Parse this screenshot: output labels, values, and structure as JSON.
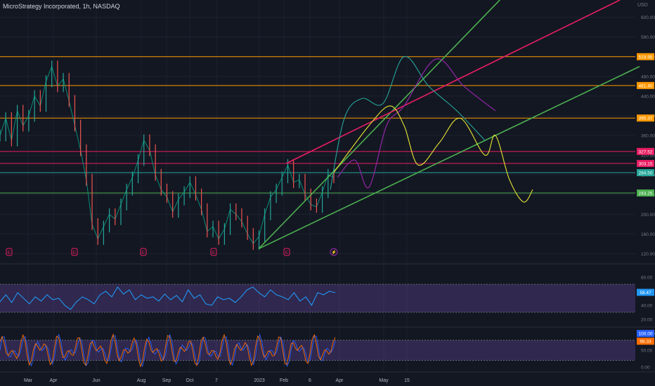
{
  "header": {
    "title": "MicroStrategy Incorporated, 1h, NASDAQ",
    "currency": "USD"
  },
  "chart_data": {
    "type": "line",
    "title": "MicroStrategy Incorporated, 1h, NASDAQ",
    "currency": "USD",
    "x_ticks": [
      "Mar",
      "Apr",
      "Jun",
      "Aug",
      "Sep",
      "Oct",
      "7",
      "2023",
      "Feb",
      "6",
      "Apr",
      "May",
      "15"
    ],
    "price_ticks": [
      600,
      560,
      520,
      480,
      440,
      400,
      360,
      320,
      280,
      240,
      200,
      160,
      120
    ],
    "price_range": [
      105,
      635
    ],
    "grid": true,
    "series": [
      {
        "values": [
          360,
          395,
          350,
          410,
          380,
          400,
          440,
          420,
          470,
          500,
          460,
          475,
          430,
          380,
          330,
          270,
          180,
          150,
          175,
          200,
          190,
          220,
          250,
          275,
          310,
          350,
          330,
          280,
          250,
          235,
          205,
          230,
          245,
          265,
          240,
          210,
          165,
          175,
          150,
          170,
          210,
          200,
          185,
          160,
          140,
          155,
          200,
          235,
          250,
          275,
          300,
          265,
          270,
          240,
          220,
          215,
          245,
          280,
          275
        ]
      }
    ],
    "earnings_markers": [
      "E",
      "E",
      "E",
      "E",
      "E"
    ],
    "dividend_marker": "⚡",
    "horizontal_levels": [
      {
        "value": 519.95,
        "label": "519.95",
        "color": "#ff9800"
      },
      {
        "value": 461.4,
        "label": "461.40",
        "color": "#ff9800"
      },
      {
        "value": 395.37,
        "label": "395.37",
        "color": "#ff9800"
      },
      {
        "value": 327.52,
        "label": "327.52",
        "color": "#e91e63"
      },
      {
        "value": 303.15,
        "label": "303.15",
        "color": "#e91e63"
      },
      {
        "value": 284.5,
        "label": "284.50",
        "color": "#26a69a"
      },
      {
        "value": 243.25,
        "label": "243.25",
        "color": "#4caf50"
      }
    ],
    "trendlines": [
      {
        "color": "#4caf50",
        "from": [
          368,
          130
        ],
        "to": [
          720,
          648
        ]
      },
      {
        "color": "#4caf50",
        "from": [
          368,
          130
        ],
        "to": [
          910,
          500
        ]
      },
      {
        "color": "#e91e63",
        "from": [
          407,
          303
        ],
        "to": [
          882,
          635
        ]
      }
    ],
    "projections": [
      {
        "color": "#26a69a",
        "points": [
          [
            470,
            250
          ],
          [
            490,
            395
          ],
          [
            515,
            435
          ],
          [
            545,
            425
          ],
          [
            575,
            520
          ],
          [
            610,
            460
          ],
          [
            650,
            410
          ],
          [
            690,
            350
          ]
        ]
      },
      {
        "color": "#9c27b0",
        "points": [
          [
            480,
            275
          ],
          [
            505,
            310
          ],
          [
            525,
            255
          ],
          [
            550,
            380
          ],
          [
            575,
            420
          ],
          [
            620,
            515
          ],
          [
            660,
            460
          ],
          [
            705,
            410
          ]
        ]
      },
      {
        "color": "#e6e633",
        "points": [
          [
            475,
            285
          ],
          [
            525,
            380
          ],
          [
            555,
            420
          ],
          [
            575,
            380
          ],
          [
            595,
            300
          ],
          [
            625,
            345
          ],
          [
            655,
            395
          ],
          [
            690,
            320
          ],
          [
            705,
            360
          ],
          [
            725,
            270
          ],
          [
            745,
            225
          ],
          [
            758,
            250
          ]
        ]
      }
    ],
    "indicators": [
      {
        "name": "rsi",
        "ticks": [
          80,
          60,
          40,
          20
        ],
        "range": [
          10,
          95
        ],
        "band": [
          30,
          70
        ],
        "last_value": "58.47",
        "values": [
          45,
          55,
          44,
          58,
          50,
          42,
          52,
          46,
          55,
          48,
          50,
          40,
          34,
          45,
          52,
          48,
          42,
          55,
          60,
          52,
          66,
          56,
          62,
          48,
          55,
          50,
          52,
          46,
          56,
          48,
          54,
          45,
          62,
          50,
          55,
          42,
          40,
          52,
          48,
          50,
          44,
          52,
          62,
          66,
          58,
          52,
          62,
          55,
          52,
          48,
          58,
          46,
          52,
          40,
          58,
          55,
          60,
          58
        ]
      },
      {
        "name": "stoch_rsi",
        "ticks": [
          100,
          50,
          0
        ],
        "range": [
          -10,
          115
        ],
        "band": [
          20,
          80
        ],
        "last_values": [
          "100.00",
          "98.33"
        ],
        "colors": [
          "#2962ff",
          "#ff6d00"
        ]
      }
    ]
  }
}
